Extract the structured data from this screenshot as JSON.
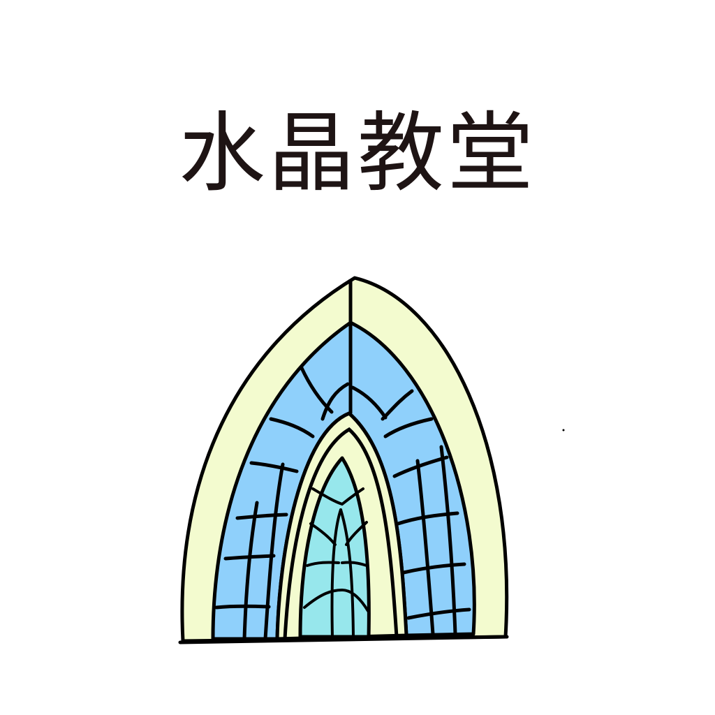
{
  "title": "水晶教堂",
  "colors": {
    "text": "#1e1414",
    "outline": "#000000",
    "cream": "#f3fbcf",
    "blue_glass": "#8fd0fb",
    "teal_glass": "#97e7ec"
  },
  "illustration": {
    "icon": "crystal-church-window-icon"
  }
}
